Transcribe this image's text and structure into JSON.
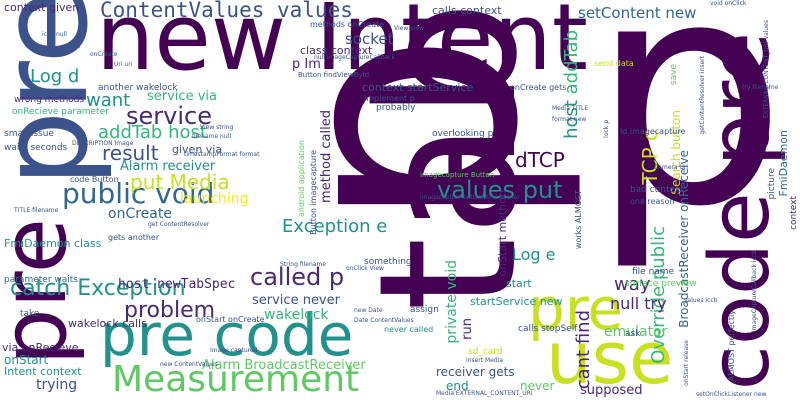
{
  "word_cloud": {
    "words": {
      "p": "p",
      "tab": "tab",
      "new_intent": "new Intent",
      "pre": "pre",
      "code_pre": "code pre",
      "pre_code": "pre code",
      "use": "use",
      "pre_vertical": "pre",
      "measurement": "Measurement",
      "contentvalues_values": "ContentValues values",
      "catch_exception": "catch Exception",
      "public_void": "public void",
      "put_media": "put Media",
      "service": "service",
      "result": "result",
      "values_put": "values put",
      "called_p": "called p",
      "problem": "problem",
      "exception_e": "Exception e",
      "override_public": "Override public",
      "log_d": "Log d",
      "log_e": "Log e",
      "way": "way",
      "null_try": "null try",
      "onstart": "onStart",
      "dtcp": "dTCP",
      "tcp_c": "TCP c",
      "want": "want",
      "addtab_host": "addTab host",
      "addtab": "addTab",
      "host": "host",
      "cant_find": "cant find",
      "emulator": "emulator",
      "socket": "socket",
      "setcontent_new": "setContent new",
      "service_via": "service via",
      "alarm_receiver": "Alarm receiver",
      "launching": "launching",
      "oncreate": "onCreate",
      "host_newtabspec": "host newTabSpec",
      "wakelock": "wakelock",
      "wakelock_calls": "wakelock calls",
      "service_never": "service never",
      "alarm_broadcastreceiver": "Alarm BroadcastReceiver",
      "trying": "trying",
      "intent_context": "Intent context",
      "via_onrecieve": "via onRecieve",
      "onstart_small": "onStart",
      "private_void": "private void",
      "run": "run",
      "receiver_gets": "receiver gets",
      "end": "end",
      "never": "never",
      "supposed": "supposed",
      "startservice_new": "startService new",
      "broadcastreceiver_onreceive": "BroadcastReceiver onReceive",
      "search_button": "Search button",
      "method_called": "method called",
      "context_startservice": "context startService",
      "calls_context": "calls context",
      "class_context": "class context",
      "p_im": "p Im",
      "context_given": "context given",
      "onstart_method": "onStart method",
      "start": "start",
      "fmidaemon_class": "FmiDaemon class",
      "parameter_waits": "parameter waits",
      "given_via": "given via",
      "sd_card": "sd_card",
      "methods_oncreate": "methods onCreate",
      "another_wakelock": "another wakelock",
      "wrong_methods": "wrong methods",
      "onrecieve_parameter": "onRecieve parameter",
      "small_issue": "small issue",
      "waits_seconds": "waits seconds",
      "code_button": "code Button",
      "gets_another": "gets another",
      "take": "take",
      "probably": "probably",
      "overlooking_p": "overlooking p",
      "something": "something",
      "assign": "assign",
      "never_called": "never called",
      "calls_stopself": "calls stopSelf",
      "ask": "ask",
      "file_name": "file name",
      "surface_preview": "surface preview",
      "bad_context": "bad context",
      "one_reason": "one reason",
      "works_almost": "works ALMOST",
      "almost_perfectly": "ALMOST perfectly",
      "picture": "picture",
      "fmidaemon": "FmiDaemon",
      "context": "context",
      "send_data": "send data",
      "save": "save",
      "implement_p": "implement p",
      "oncreate_gets": "onCreate gets",
      "id_imagecapture": "id imagecapture",
      "imagecapture_button": "imagecapture Button",
      "android_application": "android application",
      "button_imagecapture": "Button imagecapture",
      "button_findviewbyid": "Button findViewById",
      "null_imagecapturecallback": "null ImageCaptureCallback",
      "descending_image": "DESCRIPTION Image",
      "timestampformat_format": "timestampFormat format",
      "view_string": "View string",
      "media_title": "Media TITLE",
      "camera_uri": "Camera Uri",
      "format_new": "format new",
      "lock_p": "lock p",
      "values_iccb": "values iccb",
      "onclick_view": "onClick View",
      "string_filename": "String filename",
      "date_contentvalues": "Date ContentValues",
      "new_date": "new Date",
      "insert_media": "insert Media",
      "media_external": "Media EXTERNAL_CONTENT_URI",
      "new_contentvalues": "new ContentValues",
      "image_captured": "Image captured",
      "onstart_oncreate": "onStart onCreate",
      "get_contentresolver": "get ContentResolver",
      "title_filename": "TITLE filename",
      "setonclicklistener_new": "setOnClickListener new",
      "imagecapture_setonclicklistener": "imagecapture setOnClickListener",
      "imagecapturecallback_iccb": "ImageCaptureCallback iccb",
      "void_onclick": "void onClick",
      "try_filename": "try filename",
      "uri_uri": "Uri uri",
      "filename_null": "filename null",
      "getcontentresolver_insert": "getContentResolver insert",
      "external_content_uri": "EXTERNAL_CONTENT_URI values",
      "onstart_oncreate2": "onStart release",
      "view_view": "View view",
      "iccb_null": "iccb null",
      "call": "call",
      "oncreate_small": "onCreate"
    }
  }
}
